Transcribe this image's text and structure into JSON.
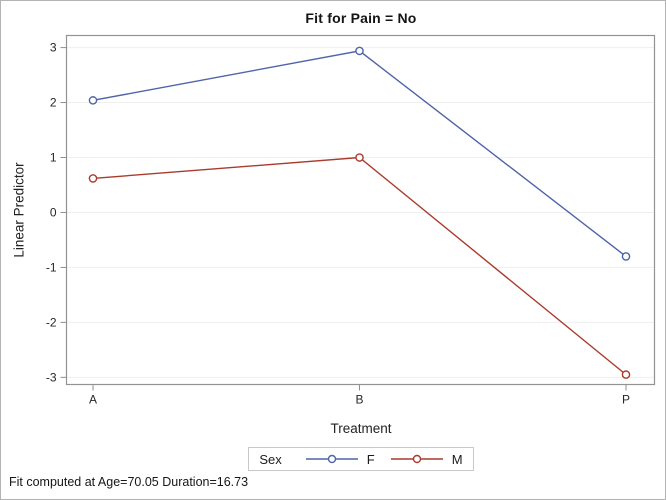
{
  "figure": {
    "title": "Fit for Pain = No",
    "footnote": "Fit computed at Age=70.05 Duration=16.73"
  },
  "chart_data": {
    "type": "line",
    "title": "Fit for Pain = No",
    "xlabel": "Treatment",
    "ylabel": "Linear Predictor",
    "categories": [
      "A",
      "B",
      "P"
    ],
    "series": [
      {
        "name": "F",
        "color": "#4F63A8",
        "values": [
          2.04,
          2.94,
          -0.8
        ]
      },
      {
        "name": "M",
        "color": "#A93B2D",
        "values": [
          0.62,
          1.0,
          -2.95
        ]
      }
    ],
    "yticks": [
      3,
      2,
      1,
      0,
      -1,
      -2,
      -3
    ],
    "ylim": [
      -3.13,
      3.22
    ],
    "grid": "horizontal-only",
    "gridline_color": "#efefef",
    "frame_color": "#939393",
    "marker": "open-circle",
    "legend": {
      "title": "Sex",
      "position": "bottom",
      "entries": [
        "F",
        "M"
      ]
    },
    "footnote": "Fit computed at Age=70.05 Duration=16.73"
  }
}
